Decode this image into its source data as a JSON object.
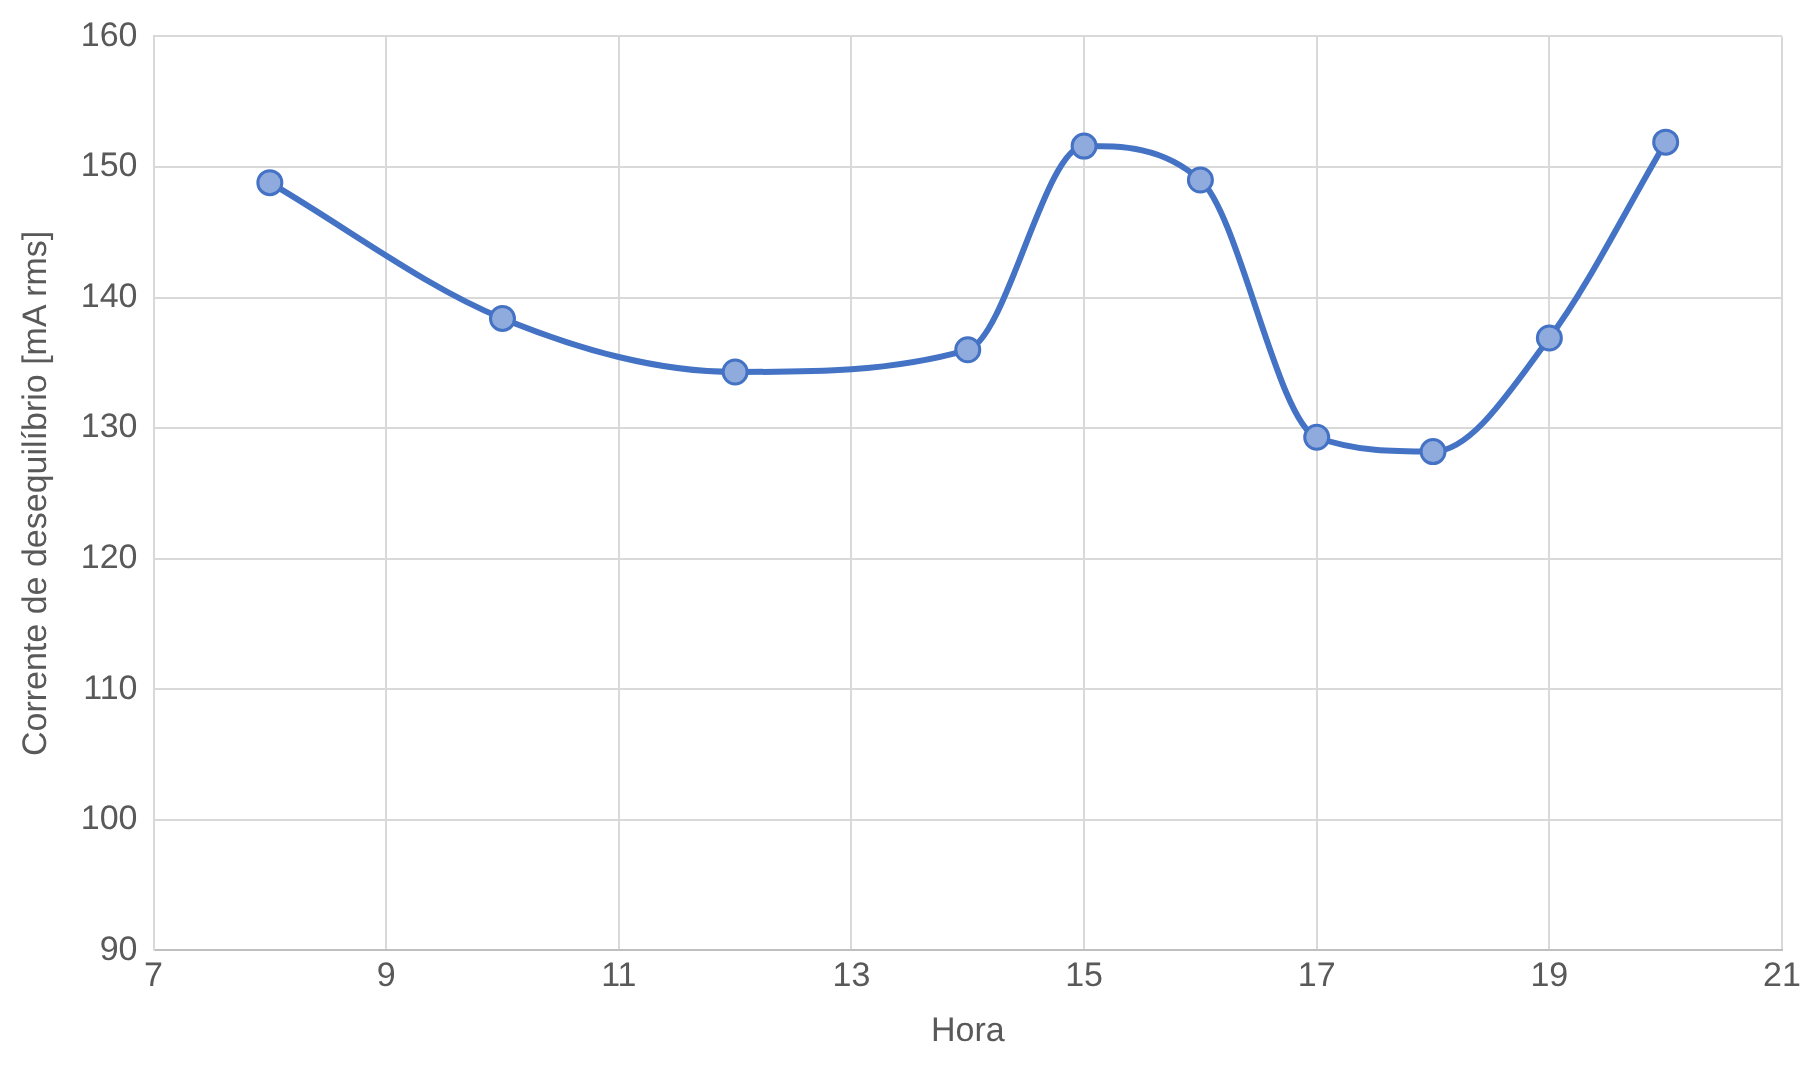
{
  "chart_data": {
    "type": "line",
    "xlabel": "Hora",
    "ylabel": "Corrente de desequilíbrio [mA rms]",
    "x": [
      8,
      10,
      12,
      14,
      15,
      16,
      17,
      18,
      19,
      20
    ],
    "series": [
      {
        "color": "#4472c4",
        "values": [
          148.8,
          138.4,
          134.3,
          136.0,
          151.6,
          149.0,
          129.3,
          128.2,
          136.9,
          151.9
        ]
      }
    ],
    "xlim": [
      7,
      21
    ],
    "xticks": [
      7,
      9,
      11,
      13,
      15,
      17,
      19,
      21
    ],
    "ylim": [
      90,
      160
    ],
    "yticks": [
      90,
      100,
      110,
      120,
      130,
      140,
      150,
      160
    ],
    "grid": true,
    "legend": false,
    "marker": "circle",
    "line_style": "solid"
  }
}
